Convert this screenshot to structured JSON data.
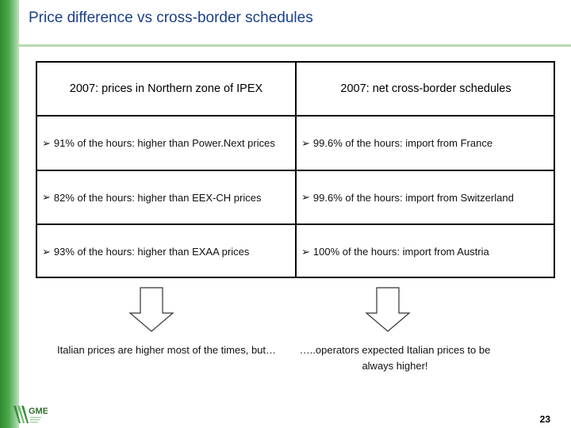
{
  "slide": {
    "title": "Price difference vs cross-border schedules",
    "page_number": "23",
    "accent_color": "#1a3f8a",
    "bar_color": "#4aa84a"
  },
  "table": {
    "headers": [
      "2007: prices in Northern zone of IPEX",
      "2007: net cross-border schedules"
    ],
    "bullet_icon": "arrow-right-icon",
    "rows": [
      [
        "91% of the hours: higher than Power.Next prices",
        "99.6% of the hours: import from France"
      ],
      [
        "82% of the hours: higher than EEX-CH prices",
        "99.6% of the hours: import from Switzerland"
      ],
      [
        "93% of the hours: higher than EXAA prices",
        "100% of the hours: import from Austria"
      ]
    ]
  },
  "conclusions": {
    "left": "Italian prices are higher most of the times, but…",
    "right_line1": "…..operators expected Italian prices to be",
    "right_line2": "always higher!"
  },
  "logo": {
    "text": "GME"
  }
}
